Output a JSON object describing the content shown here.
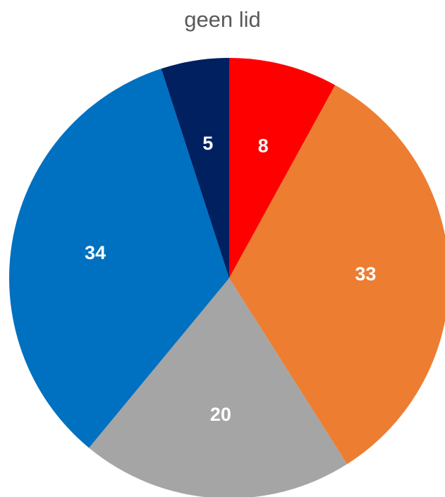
{
  "chart_data": {
    "type": "pie",
    "title": "geen lid",
    "values": [
      8,
      33,
      20,
      34,
      5
    ],
    "data_labels": [
      "8",
      "33",
      "20",
      "34",
      "5"
    ],
    "colors": [
      "#ff0000",
      "#ed7d31",
      "#a5a5a5",
      "#0070c0",
      "#002060"
    ],
    "start_angle": "top, clockwise",
    "legend": "none"
  }
}
